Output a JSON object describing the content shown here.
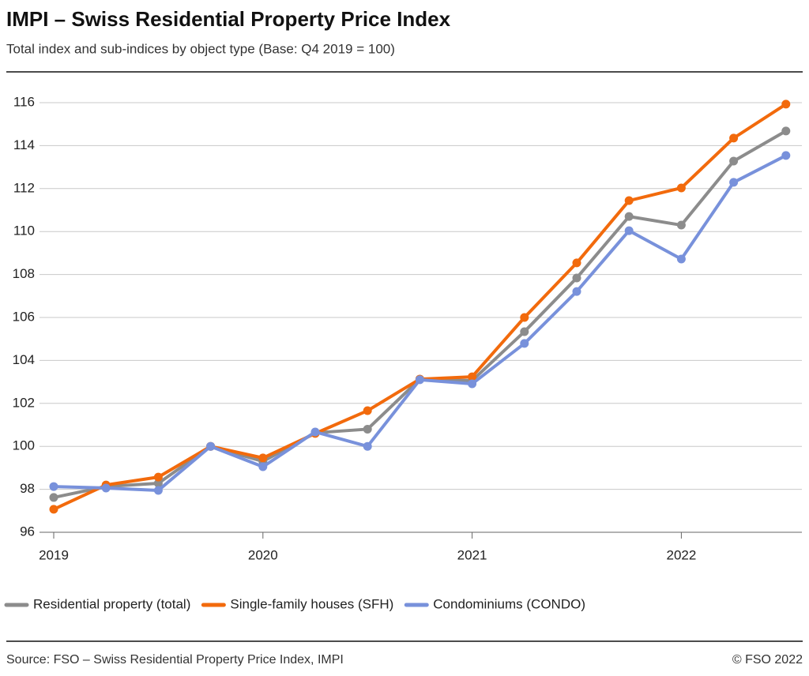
{
  "chart_data": {
    "type": "line",
    "title": "IMPI – Swiss Residential Property Price Index",
    "subtitle": "Total index and sub-indices by object type (Base: Q4 2019 = 100)",
    "source": "Source: FSO – Swiss Residential Property Price Index, IMPI",
    "credit": "© FSO 2022",
    "categories": [
      "2019",
      null,
      null,
      null,
      "2020",
      null,
      null,
      null,
      "2021",
      null,
      null,
      null,
      "2022",
      null,
      null
    ],
    "series": [
      {
        "name": "Residential property (total)",
        "color": "#8c8c8c",
        "values": [
          97.62,
          98.13,
          98.28,
          100.0,
          99.3,
          100.63,
          100.8,
          103.13,
          103.06,
          105.34,
          107.84,
          110.7,
          110.3,
          113.28,
          114.68
        ]
      },
      {
        "name": "Single-family houses (SFH)",
        "color": "#f26a0c",
        "values": [
          97.07,
          98.2,
          98.57,
          100.0,
          99.46,
          100.6,
          101.66,
          103.13,
          103.24,
          106.0,
          108.54,
          111.44,
          112.03,
          114.35,
          115.93
        ]
      },
      {
        "name": "Condominiums (CONDO)",
        "color": "#7891db",
        "values": [
          98.13,
          98.06,
          97.95,
          100.0,
          99.05,
          100.67,
          100.0,
          103.1,
          102.91,
          104.79,
          107.21,
          110.04,
          108.72,
          112.29,
          113.54
        ]
      }
    ],
    "ylim": [
      96,
      116
    ],
    "yticks": [
      96,
      98,
      100,
      102,
      104,
      106,
      108,
      110,
      112,
      114,
      116
    ],
    "grid": true,
    "legend": "bottom"
  }
}
